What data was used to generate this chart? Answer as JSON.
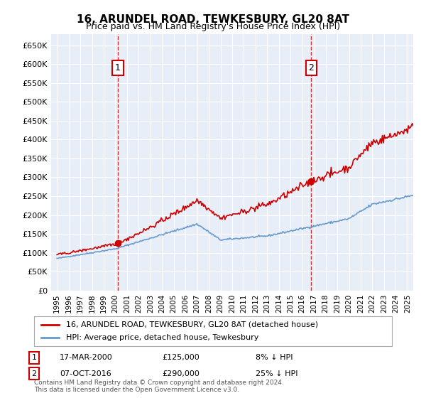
{
  "title": "16, ARUNDEL ROAD, TEWKESBURY, GL20 8AT",
  "subtitle": "Price paid vs. HM Land Registry's House Price Index (HPI)",
  "legend_line1": "16, ARUNDEL ROAD, TEWKESBURY, GL20 8AT (detached house)",
  "legend_line2": "HPI: Average price, detached house, Tewkesbury",
  "annotation1_label": "1",
  "annotation1_date": "17-MAR-2000",
  "annotation1_price": "£125,000",
  "annotation1_hpi": "8% ↓ HPI",
  "annotation1_year": 2000.21,
  "annotation1_value": 125000,
  "annotation2_label": "2",
  "annotation2_date": "07-OCT-2016",
  "annotation2_price": "£290,000",
  "annotation2_hpi": "25% ↓ HPI",
  "annotation2_year": 2016.77,
  "annotation2_value": 290000,
  "footer": "Contains HM Land Registry data © Crown copyright and database right 2024.\nThis data is licensed under the Open Government Licence v3.0.",
  "ylim": [
    0,
    680000
  ],
  "xlim_start": 1994.5,
  "xlim_end": 2025.5,
  "yticks": [
    0,
    50000,
    100000,
    150000,
    200000,
    250000,
    300000,
    350000,
    400000,
    450000,
    500000,
    550000,
    600000,
    650000
  ],
  "background_color": "#e8eef8",
  "plot_bg": "#e8eef8",
  "grid_color": "#ffffff",
  "red_line_color": "#cc0000",
  "blue_line_color": "#6699cc",
  "sale_marker_color": "#cc0000",
  "hpi_line_color": "#6699cc"
}
